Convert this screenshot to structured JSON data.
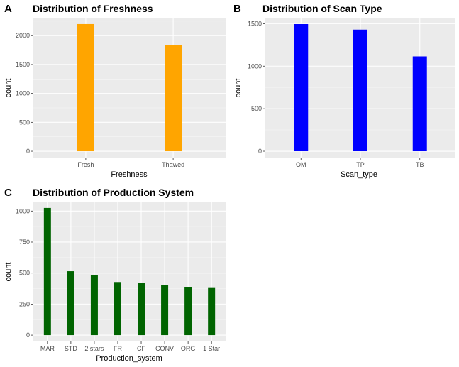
{
  "chart_data": [
    {
      "panel_label": "A",
      "type": "bar",
      "title": "Distribution of Freshness",
      "xlabel": "Freshness",
      "ylabel": "count",
      "categories": [
        "Fresh",
        "Thawed"
      ],
      "values": [
        2200,
        1840
      ],
      "yticks": [
        0,
        500,
        1000,
        1500,
        2000
      ],
      "ylim": [
        -110,
        2310
      ],
      "color": "#FFA500",
      "grid": true
    },
    {
      "panel_label": "B",
      "type": "bar",
      "title": "Distribution of Scan Type",
      "xlabel": "Scan_type",
      "ylabel": "count",
      "categories": [
        "OM",
        "TP",
        "TB"
      ],
      "values": [
        1495,
        1430,
        1115
      ],
      "yticks": [
        0,
        500,
        1000,
        1500
      ],
      "ylim": [
        -75,
        1570
      ],
      "color": "#0000FF",
      "grid": true
    },
    {
      "panel_label": "C",
      "type": "bar",
      "title": "Distribution of Production System",
      "xlabel": "Production_system",
      "ylabel": "count",
      "categories": [
        "MAR",
        "STD",
        "2 stars",
        "FR",
        "CF",
        "CONV",
        "ORG",
        "1 Star"
      ],
      "values": [
        1025,
        515,
        483,
        428,
        422,
        403,
        388,
        380
      ],
      "yticks": [
        0,
        250,
        500,
        750,
        1000
      ],
      "ylim": [
        -51,
        1076
      ],
      "color": "#006400",
      "grid": true
    }
  ]
}
